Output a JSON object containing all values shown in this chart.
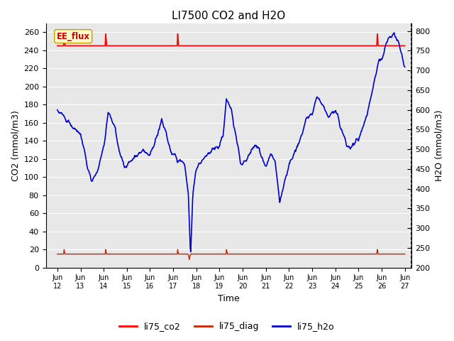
{
  "title": "LI7500 CO2 and H2O",
  "xlabel": "Time",
  "ylabel_left": "CO2 (mmol/m3)",
  "ylabel_right": "H2O (mmol/m3)",
  "ylim_left": [
    0,
    270
  ],
  "ylim_right": [
    200,
    820
  ],
  "yticks_left": [
    0,
    20,
    40,
    60,
    80,
    100,
    120,
    140,
    160,
    180,
    200,
    220,
    240,
    260
  ],
  "yticks_right": [
    200,
    250,
    300,
    350,
    400,
    450,
    500,
    550,
    600,
    650,
    700,
    750,
    800
  ],
  "xtick_labels": [
    "Jun 12",
    "Jun 13",
    "Jun 14",
    "Jun 15",
    "Jun 16",
    "Jun 17",
    "Jun 18",
    "Jun 19",
    "Jun 20",
    "Jun 21",
    "Jun 22",
    "Jun 23",
    "Jun 24",
    "Jun 25",
    "Jun 26",
    "Jun 27"
  ],
  "xtick_positions": [
    12,
    13,
    14,
    15,
    16,
    17,
    18,
    19,
    20,
    21,
    22,
    23,
    24,
    25,
    26,
    27
  ],
  "xlim": [
    11.5,
    27.3
  ],
  "bg_color": "#e8e8e8",
  "fig_bg_color": "#ffffff",
  "grid_color": "#ffffff",
  "co2_color": "#ff0000",
  "diag_color": "#cc2200",
  "h2o_color": "#0000cc",
  "ee_flux_label": "EE_flux",
  "ee_flux_box_color": "#ffffcc",
  "ee_flux_text_color": "#cc0000",
  "ee_flux_border_color": "#cc9900",
  "legend_items": [
    "li75_co2",
    "li75_diag",
    "li75_h2o"
  ],
  "legend_colors": [
    "#ff0000",
    "#cc2200",
    "#0000cc"
  ]
}
